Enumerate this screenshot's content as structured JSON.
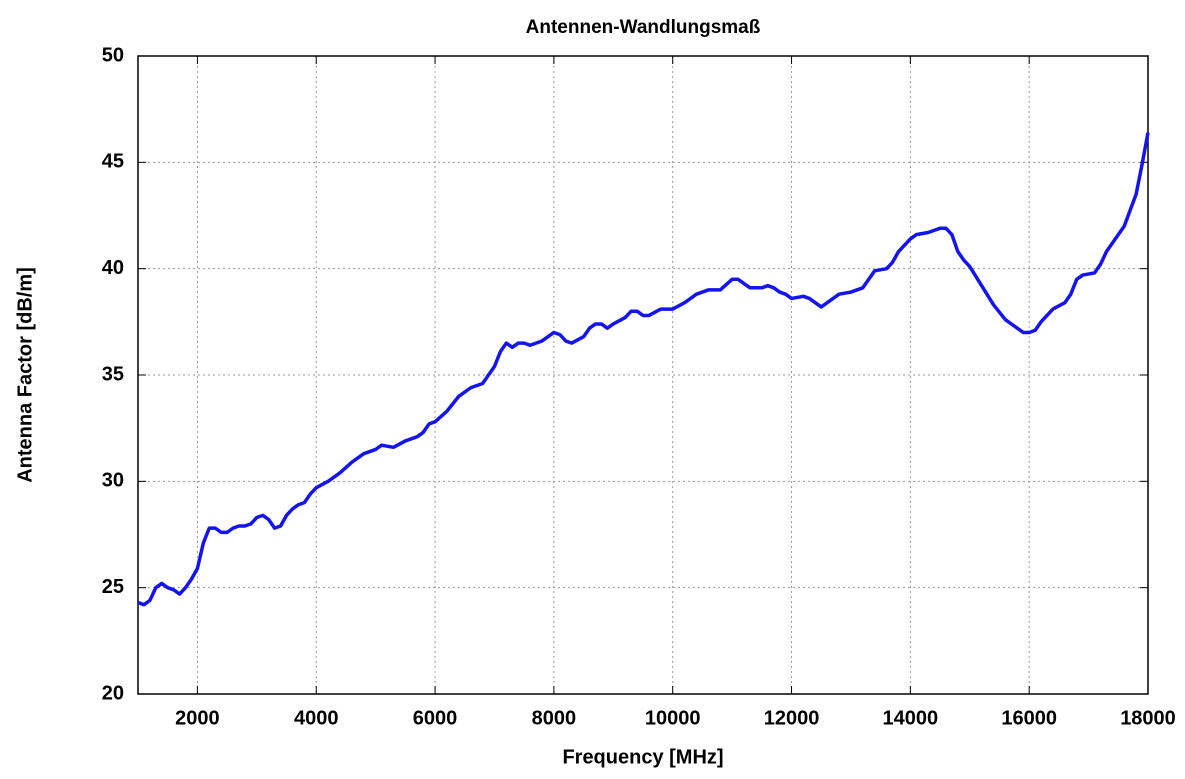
{
  "chart_data": {
    "type": "line",
    "title": "Antennen-Wandlungsmaß",
    "x_label": "Frequency [MHz]",
    "y_label": "Antenna Factor [dB/m]",
    "x": [
      1000,
      1100,
      1200,
      1300,
      1400,
      1500,
      1600,
      1700,
      1800,
      1900,
      2000,
      2100,
      2200,
      2300,
      2400,
      2500,
      2600,
      2700,
      2800,
      2900,
      3000,
      3100,
      3200,
      3300,
      3400,
      3500,
      3600,
      3700,
      3800,
      3900,
      4000,
      4200,
      4400,
      4600,
      4800,
      5000,
      5100,
      5300,
      5500,
      5700,
      5800,
      5900,
      6000,
      6200,
      6400,
      6600,
      6800,
      7000,
      7100,
      7200,
      7300,
      7400,
      7500,
      7600,
      7700,
      7800,
      8000,
      8100,
      8200,
      8300,
      8500,
      8600,
      8700,
      8800,
      8900,
      9000,
      9200,
      9300,
      9400,
      9500,
      9600,
      9800,
      10000,
      10200,
      10400,
      10600,
      10800,
      11000,
      11100,
      11200,
      11300,
      11400,
      11500,
      11600,
      11700,
      11800,
      11900,
      12000,
      12200,
      12300,
      12500,
      12600,
      12800,
      13000,
      13200,
      13400,
      13600,
      13700,
      13800,
      14000,
      14100,
      14300,
      14500,
      14600,
      14700,
      14800,
      14900,
      15000,
      15200,
      15400,
      15600,
      15800,
      15900,
      16000,
      16100,
      16200,
      16400,
      16600,
      16700,
      16800,
      16900,
      17100,
      17200,
      17300,
      17500,
      17600,
      17800,
      17900,
      18000
    ],
    "values": [
      24.3,
      24.2,
      24.4,
      25.0,
      25.2,
      25.0,
      24.9,
      24.7,
      25.0,
      25.4,
      25.9,
      27.1,
      27.8,
      27.8,
      27.6,
      27.6,
      27.8,
      27.9,
      27.9,
      28.0,
      28.3,
      28.4,
      28.2,
      27.8,
      27.9,
      28.4,
      28.7,
      28.9,
      29.0,
      29.4,
      29.7,
      30.0,
      30.4,
      30.9,
      31.3,
      31.5,
      31.7,
      31.6,
      31.9,
      32.1,
      32.3,
      32.7,
      32.8,
      33.3,
      34.0,
      34.4,
      34.6,
      35.4,
      36.1,
      36.5,
      36.3,
      36.5,
      36.5,
      36.4,
      36.5,
      36.6,
      37.0,
      36.9,
      36.6,
      36.5,
      36.8,
      37.2,
      37.4,
      37.4,
      37.2,
      37.4,
      37.7,
      38.0,
      38.0,
      37.8,
      37.8,
      38.1,
      38.1,
      38.4,
      38.8,
      39.0,
      39.0,
      39.5,
      39.5,
      39.3,
      39.1,
      39.1,
      39.1,
      39.2,
      39.1,
      38.9,
      38.8,
      38.6,
      38.7,
      38.6,
      38.2,
      38.4,
      38.8,
      38.9,
      39.1,
      39.9,
      40.0,
      40.3,
      40.8,
      41.4,
      41.6,
      41.7,
      41.9,
      41.9,
      41.6,
      40.8,
      40.4,
      40.1,
      39.2,
      38.3,
      37.6,
      37.2,
      37.0,
      37.0,
      37.1,
      37.5,
      38.1,
      38.4,
      38.8,
      39.5,
      39.7,
      39.8,
      40.2,
      40.8,
      41.6,
      42.0,
      43.5,
      44.9,
      46.4
    ],
    "color": "#1414f0",
    "xlim": [
      1000,
      18000
    ],
    "xticks": [
      2000,
      4000,
      6000,
      8000,
      10000,
      12000,
      14000,
      16000,
      18000
    ],
    "ylim": [
      20,
      50
    ],
    "yticks": [
      20,
      25,
      30,
      35,
      40,
      45,
      50
    ],
    "grid": true
  }
}
